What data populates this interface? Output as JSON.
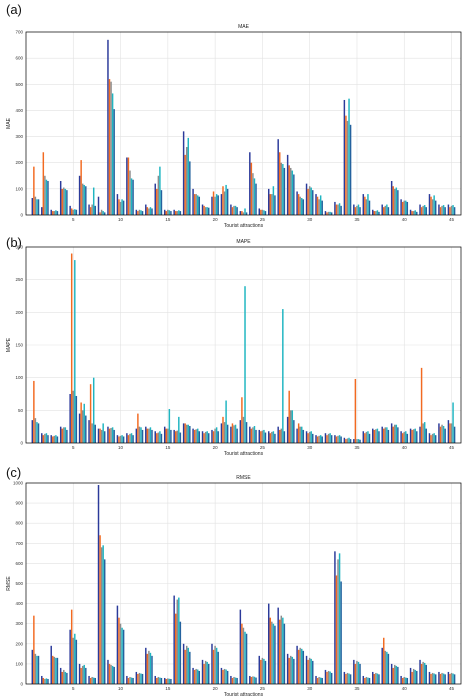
{
  "colors": {
    "series1": "#2b3a9a",
    "series2": "#f26a21",
    "series3": "#8c8c8c",
    "series4": "#1fb5c1",
    "series5": "#24629e",
    "axis": "#000000",
    "grid": "#e2e2e2"
  },
  "chart_data": [
    {
      "panel": "(a)",
      "type": "bar",
      "title": "MAE",
      "xlabel": "Tourist attractions",
      "ylabel": "MAE",
      "ylim": [
        0,
        700
      ],
      "yticks": [
        0,
        100,
        200,
        300,
        400,
        500,
        600,
        700
      ],
      "xticks": [
        5,
        10,
        15,
        20,
        25,
        30,
        35,
        40,
        45
      ],
      "grid": true,
      "x": [
        1,
        2,
        3,
        4,
        5,
        6,
        7,
        8,
        9,
        10,
        11,
        12,
        13,
        14,
        15,
        16,
        17,
        18,
        19,
        20,
        21,
        22,
        23,
        24,
        25,
        26,
        27,
        28,
        29,
        30,
        31,
        32,
        33,
        34,
        35,
        36,
        37,
        38,
        39,
        40,
        41,
        42,
        43,
        44,
        45
      ],
      "series": [
        {
          "values": [
            65,
            30,
            20,
            130,
            35,
            150,
            40,
            70,
            670,
            80,
            220,
            20,
            40,
            120,
            20,
            20,
            320,
            100,
            40,
            70,
            80,
            40,
            15,
            240,
            25,
            100,
            290,
            230,
            90,
            120,
            80,
            15,
            50,
            440,
            40,
            80,
            20,
            40,
            130,
            60,
            20,
            40,
            80,
            40,
            40
          ]
        },
        {
          "values": [
            185,
            240,
            15,
            100,
            25,
            210,
            30,
            10,
            520,
            60,
            220,
            15,
            30,
            100,
            15,
            15,
            230,
            80,
            35,
            90,
            110,
            30,
            15,
            200,
            20,
            80,
            240,
            190,
            80,
            100,
            70,
            10,
            40,
            380,
            30,
            70,
            15,
            30,
            110,
            50,
            15,
            30,
            70,
            30,
            30
          ]
        },
        {
          "values": [
            70,
            150,
            15,
            105,
            20,
            120,
            40,
            20,
            510,
            50,
            170,
            20,
            25,
            150,
            20,
            15,
            260,
            80,
            30,
            70,
            90,
            35,
            10,
            160,
            20,
            80,
            200,
            180,
            70,
            110,
            60,
            12,
            40,
            360,
            35,
            60,
            15,
            35,
            100,
            55,
            15,
            35,
            60,
            35,
            35
          ]
        },
        {
          "values": [
            60,
            135,
            18,
            100,
            22,
            115,
            105,
            15,
            465,
            60,
            140,
            18,
            30,
            185,
            18,
            18,
            295,
            75,
            30,
            80,
            115,
            35,
            25,
            140,
            18,
            110,
            195,
            170,
            65,
            105,
            75,
            12,
            45,
            445,
            40,
            80,
            18,
            40,
            105,
            55,
            18,
            38,
            75,
            38,
            38
          ]
        },
        {
          "values": [
            60,
            130,
            15,
            95,
            20,
            110,
            35,
            10,
            405,
            55,
            135,
            15,
            25,
            95,
            15,
            15,
            205,
            70,
            28,
            75,
            100,
            30,
            10,
            120,
            15,
            75,
            180,
            155,
            60,
            95,
            55,
            10,
            35,
            345,
            30,
            55,
            12,
            30,
            95,
            50,
            12,
            30,
            55,
            30,
            30
          ]
        }
      ]
    },
    {
      "panel": "(b)",
      "type": "bar",
      "title": "MAPE",
      "xlabel": "Tourist attractions",
      "ylabel": "MAPE",
      "ylim": [
        0,
        300
      ],
      "yticks": [
        0,
        50,
        100,
        150,
        200,
        250,
        300
      ],
      "xticks": [
        5,
        10,
        15,
        20,
        25,
        30,
        35,
        40,
        45
      ],
      "grid": true,
      "x": [
        1,
        2,
        3,
        4,
        5,
        6,
        7,
        8,
        9,
        10,
        11,
        12,
        13,
        14,
        15,
        16,
        17,
        18,
        19,
        20,
        21,
        22,
        23,
        24,
        25,
        26,
        27,
        28,
        29,
        30,
        31,
        32,
        33,
        34,
        35,
        36,
        37,
        38,
        39,
        40,
        41,
        42,
        43,
        44,
        45
      ],
      "series": [
        {
          "values": [
            35,
            15,
            12,
            25,
            75,
            45,
            35,
            22,
            25,
            12,
            15,
            22,
            25,
            18,
            25,
            20,
            30,
            22,
            18,
            20,
            30,
            25,
            35,
            25,
            20,
            18,
            25,
            40,
            22,
            18,
            12,
            15,
            12,
            8,
            6,
            18,
            22,
            25,
            30,
            18,
            22,
            25,
            15,
            30,
            35
          ]
        },
        {
          "values": [
            95,
            12,
            10,
            22,
            290,
            62,
            90,
            22,
            22,
            10,
            12,
            45,
            22,
            15,
            22,
            18,
            30,
            20,
            15,
            18,
            40,
            30,
            70,
            22,
            18,
            15,
            20,
            80,
            30,
            15,
            10,
            12,
            10,
            6,
            98,
            15,
            20,
            22,
            25,
            15,
            20,
            115,
            12,
            25,
            30
          ]
        },
        {
          "values": [
            38,
            14,
            11,
            24,
            80,
            50,
            30,
            20,
            23,
            11,
            14,
            25,
            22,
            16,
            22,
            19,
            28,
            21,
            17,
            22,
            32,
            27,
            40,
            24,
            19,
            17,
            22,
            50,
            25,
            17,
            11,
            14,
            11,
            7,
            6,
            17,
            21,
            24,
            28,
            17,
            21,
            30,
            14,
            28,
            30
          ]
        },
        {
          "values": [
            32,
            15,
            12,
            24,
            280,
            60,
            100,
            30,
            24,
            12,
            15,
            24,
            24,
            18,
            52,
            40,
            28,
            22,
            18,
            24,
            65,
            28,
            240,
            26,
            20,
            18,
            205,
            50,
            25,
            18,
            12,
            15,
            12,
            8,
            6,
            18,
            22,
            24,
            28,
            18,
            22,
            32,
            15,
            26,
            62
          ]
        },
        {
          "values": [
            30,
            12,
            10,
            20,
            72,
            42,
            28,
            18,
            20,
            10,
            12,
            20,
            20,
            14,
            20,
            16,
            26,
            18,
            15,
            18,
            28,
            22,
            32,
            20,
            16,
            14,
            18,
            35,
            20,
            14,
            10,
            12,
            10,
            6,
            5,
            14,
            18,
            20,
            24,
            14,
            18,
            22,
            12,
            22,
            25
          ]
        }
      ]
    },
    {
      "panel": "(c)",
      "type": "bar",
      "title": "RMSE",
      "xlabel": "Tourist attractions",
      "ylabel": "RMSE",
      "ylim": [
        0,
        1000
      ],
      "yticks": [
        0,
        100,
        200,
        300,
        400,
        500,
        600,
        700,
        800,
        900,
        1000
      ],
      "xticks": [
        5,
        10,
        15,
        20,
        25,
        30,
        35,
        40,
        45
      ],
      "grid": true,
      "x": [
        1,
        2,
        3,
        4,
        5,
        6,
        7,
        8,
        9,
        10,
        11,
        12,
        13,
        14,
        15,
        16,
        17,
        18,
        19,
        20,
        21,
        22,
        23,
        24,
        25,
        26,
        27,
        28,
        29,
        30,
        31,
        32,
        33,
        34,
        35,
        36,
        37,
        38,
        39,
        40,
        41,
        42,
        43,
        44,
        45
      ],
      "series": [
        {
          "values": [
            170,
            40,
            190,
            80,
            270,
            100,
            40,
            990,
            120,
            390,
            40,
            60,
            180,
            40,
            30,
            440,
            200,
            80,
            120,
            200,
            80,
            40,
            370,
            40,
            140,
            400,
            380,
            150,
            190,
            140,
            40,
            70,
            660,
            60,
            120,
            40,
            60,
            180,
            100,
            40,
            80,
            120,
            60,
            60,
            60
          ]
        },
        {
          "values": [
            340,
            30,
            140,
            60,
            370,
            80,
            30,
            740,
            100,
            330,
            30,
            50,
            150,
            30,
            25,
            350,
            170,
            70,
            100,
            170,
            70,
            30,
            300,
            35,
            120,
            330,
            320,
            130,
            170,
            120,
            30,
            60,
            540,
            50,
            100,
            30,
            50,
            230,
            80,
            30,
            60,
            100,
            50,
            50,
            50
          ]
        },
        {
          "values": [
            150,
            25,
            135,
            70,
            230,
            90,
            35,
            680,
            95,
            300,
            35,
            55,
            165,
            35,
            28,
            420,
            190,
            75,
            115,
            190,
            75,
            35,
            280,
            38,
            130,
            310,
            340,
            140,
            180,
            130,
            35,
            65,
            620,
            55,
            115,
            35,
            55,
            165,
            95,
            35,
            75,
            110,
            55,
            55,
            55
          ]
        },
        {
          "values": [
            140,
            28,
            130,
            60,
            250,
            95,
            32,
            690,
            90,
            280,
            32,
            52,
            155,
            32,
            26,
            430,
            180,
            72,
            110,
            180,
            72,
            32,
            260,
            36,
            125,
            300,
            330,
            135,
            175,
            125,
            32,
            62,
            650,
            52,
            110,
            32,
            52,
            160,
            90,
            32,
            70,
            105,
            52,
            52,
            52
          ]
        },
        {
          "values": [
            140,
            25,
            130,
            55,
            220,
            80,
            30,
            620,
            85,
            270,
            30,
            50,
            140,
            30,
            25,
            310,
            160,
            65,
            100,
            160,
            65,
            30,
            250,
            32,
            115,
            290,
            300,
            125,
            165,
            115,
            30,
            55,
            510,
            48,
            100,
            30,
            48,
            150,
            85,
            30,
            65,
            95,
            48,
            48,
            48
          ]
        }
      ]
    }
  ]
}
